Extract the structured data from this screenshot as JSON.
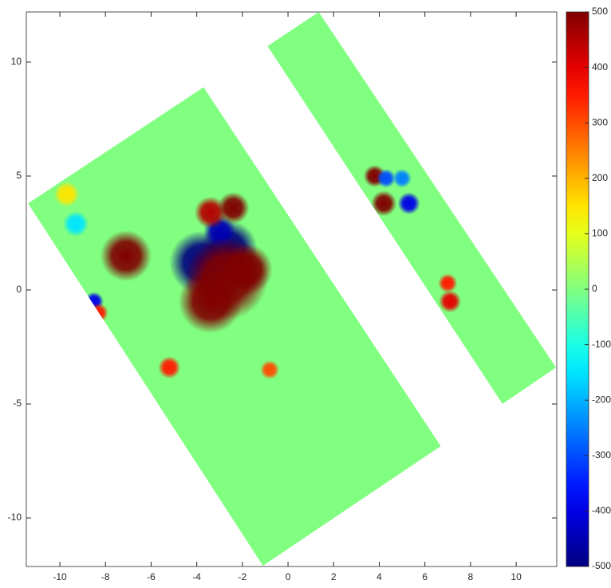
{
  "chart_data": {
    "type": "heatmap",
    "colormap": "jet",
    "xlim": [
      -11.47,
      11.78
    ],
    "ylim": [
      -12.13,
      12.2
    ],
    "xticks": [
      -10,
      -8,
      -6,
      -4,
      -2,
      0,
      2,
      4,
      6,
      8,
      10
    ],
    "yticks": [
      -10,
      -5,
      0,
      5,
      10
    ],
    "clim": [
      -500,
      500
    ],
    "cticks": [
      -500,
      -400,
      -300,
      -200,
      -100,
      0,
      100,
      200,
      300,
      400,
      500
    ],
    "regions": [
      {
        "value": 0,
        "x": [
          -11.4,
          -3.7,
          6.7,
          -1.1
        ],
        "y": [
          3.8,
          8.9,
          -6.85,
          -12.1
        ]
      },
      {
        "value": 0,
        "x": [
          -0.9,
          1.35,
          11.75,
          9.4
        ],
        "y": [
          10.7,
          12.2,
          -3.4,
          -5.0
        ]
      }
    ],
    "blobs": [
      {
        "x": -9.7,
        "y": 4.2,
        "value": 150,
        "r": 0.4
      },
      {
        "x": -9.3,
        "y": 2.9,
        "value": -150,
        "r": 0.4
      },
      {
        "x": -8.5,
        "y": -0.5,
        "value": -400,
        "r": 0.3
      },
      {
        "x": -8.3,
        "y": -1.0,
        "value": 350,
        "r": 0.3
      },
      {
        "x": -5.2,
        "y": -3.4,
        "value": 350,
        "r": 0.35
      },
      {
        "x": -0.8,
        "y": -3.5,
        "value": 300,
        "r": 0.3
      },
      {
        "x": -3.8,
        "y": 1.2,
        "value": -500,
        "r": 1.0
      },
      {
        "x": -2.6,
        "y": 1.8,
        "value": -500,
        "r": 0.9
      },
      {
        "x": -3.0,
        "y": 2.6,
        "value": -450,
        "r": 0.5
      },
      {
        "x": -3.4,
        "y": 3.4,
        "value": 450,
        "r": 0.5
      },
      {
        "x": -2.4,
        "y": 3.6,
        "value": 500,
        "r": 0.5
      },
      {
        "x": -7.1,
        "y": 1.5,
        "value": 500,
        "r": 0.8
      },
      {
        "x": -2.7,
        "y": 0.5,
        "value": 500,
        "r": 1.3
      },
      {
        "x": -3.4,
        "y": -0.5,
        "value": 500,
        "r": 1.0
      },
      {
        "x": -1.8,
        "y": 0.9,
        "value": 500,
        "r": 0.8
      },
      {
        "x": 3.8,
        "y": 5.0,
        "value": 500,
        "r": 0.35
      },
      {
        "x": 4.2,
        "y": 3.8,
        "value": 500,
        "r": 0.4
      },
      {
        "x": 4.3,
        "y": 4.9,
        "value": -300,
        "r": 0.3
      },
      {
        "x": 5.3,
        "y": 3.8,
        "value": -400,
        "r": 0.35
      },
      {
        "x": 5.0,
        "y": 4.9,
        "value": -250,
        "r": 0.3
      },
      {
        "x": 7.0,
        "y": 0.3,
        "value": 350,
        "r": 0.3
      },
      {
        "x": 7.1,
        "y": -0.5,
        "value": 400,
        "r": 0.35
      }
    ]
  }
}
